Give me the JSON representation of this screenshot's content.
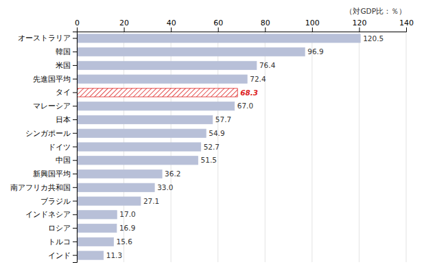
{
  "chart_data": {
    "type": "bar",
    "orientation": "horizontal",
    "xlabel": "（対GDP比：％）",
    "categories": [
      "インド",
      "トルコ",
      "ロシア",
      "インドネシア",
      "ブラジル",
      "南アフリカ共和国",
      "新興国平均",
      "中国",
      "ドイツ",
      "シンガポール",
      "日本",
      "マレーシア",
      "タイ",
      "先進国平均",
      "米国",
      "韓国",
      "オーストラリア"
    ],
    "values": [
      11.3,
      15.6,
      16.9,
      17.0,
      27.1,
      33.0,
      36.2,
      51.5,
      52.7,
      54.9,
      57.7,
      67.0,
      68.3,
      72.4,
      76.4,
      96.9,
      120.5
    ],
    "value_labels": [
      "11.3",
      "15.6",
      "16.9",
      "17.0",
      "27.1",
      "33.0",
      "36.2",
      "51.5",
      "52.7",
      "54.9",
      "57.7",
      "67.0",
      "68.3",
      "72.4",
      "76.4",
      "96.9",
      "120.5"
    ],
    "colors": [
      "#b8c0d8",
      "#b8c0d8",
      "#b8c0d8",
      "#b8c0d8",
      "#b8c0d8",
      "#b8c0d8",
      "#b8c0d8",
      "#b8c0d8",
      "#b8c0d8",
      "#b8c0d8",
      "#b8c0d8",
      "#b8c0d8",
      "#dd2222",
      "#b8c0d8",
      "#b8c0d8",
      "#b8c0d8",
      "#b8c0d8"
    ],
    "xlim": [
      0,
      140
    ],
    "xticks": [
      0,
      20,
      40,
      60,
      80,
      100,
      120,
      140
    ],
    "grid": true,
    "data_labels": true
  }
}
